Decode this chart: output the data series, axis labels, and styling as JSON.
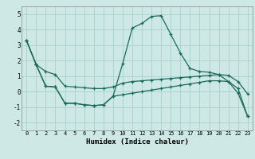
{
  "xlabel": "Humidex (Indice chaleur)",
  "background_color": "#cde8e5",
  "grid_color": "#aacfcc",
  "line_color": "#1a6b5a",
  "xlim": [
    -0.5,
    23.5
  ],
  "ylim": [
    -2.5,
    5.5
  ],
  "xticks": [
    0,
    1,
    2,
    3,
    4,
    5,
    6,
    7,
    8,
    9,
    10,
    11,
    12,
    13,
    14,
    15,
    16,
    17,
    18,
    19,
    20,
    21,
    22,
    23
  ],
  "yticks": [
    -2,
    -1,
    0,
    1,
    2,
    3,
    4,
    5
  ],
  "line1_x": [
    0,
    1,
    2,
    3,
    4,
    5,
    6,
    7,
    8,
    9,
    10,
    11,
    12,
    13,
    14,
    15,
    16,
    17,
    18,
    19,
    20,
    21,
    22,
    23
  ],
  "line1_y": [
    3.3,
    1.75,
    1.3,
    1.1,
    0.35,
    0.3,
    0.25,
    0.2,
    0.2,
    0.3,
    0.55,
    0.65,
    0.7,
    0.75,
    0.8,
    0.85,
    0.9,
    0.95,
    1.0,
    1.05,
    1.1,
    1.05,
    0.65,
    -0.15
  ],
  "line2_x": [
    0,
    1,
    2,
    3,
    4,
    5,
    6,
    7,
    8,
    9,
    10,
    11,
    12,
    13,
    14,
    15,
    16,
    17,
    18,
    19,
    20,
    21,
    22,
    23
  ],
  "line2_y": [
    3.3,
    1.75,
    0.35,
    0.3,
    -0.75,
    -0.75,
    -0.85,
    -0.9,
    -0.85,
    -0.3,
    1.8,
    4.1,
    4.4,
    4.85,
    4.9,
    3.7,
    2.5,
    1.5,
    1.3,
    1.25,
    1.1,
    0.65,
    -0.1,
    -1.6
  ],
  "line3_x": [
    0,
    1,
    2,
    3,
    4,
    5,
    6,
    7,
    8,
    9,
    10,
    11,
    12,
    13,
    14,
    15,
    16,
    17,
    18,
    19,
    20,
    21,
    22,
    23
  ],
  "line3_y": [
    3.3,
    1.75,
    0.35,
    0.3,
    -0.75,
    -0.75,
    -0.85,
    -0.9,
    -0.85,
    -0.3,
    -0.2,
    -0.1,
    0.0,
    0.1,
    0.2,
    0.3,
    0.4,
    0.5,
    0.6,
    0.7,
    0.7,
    0.65,
    0.2,
    -1.6
  ]
}
